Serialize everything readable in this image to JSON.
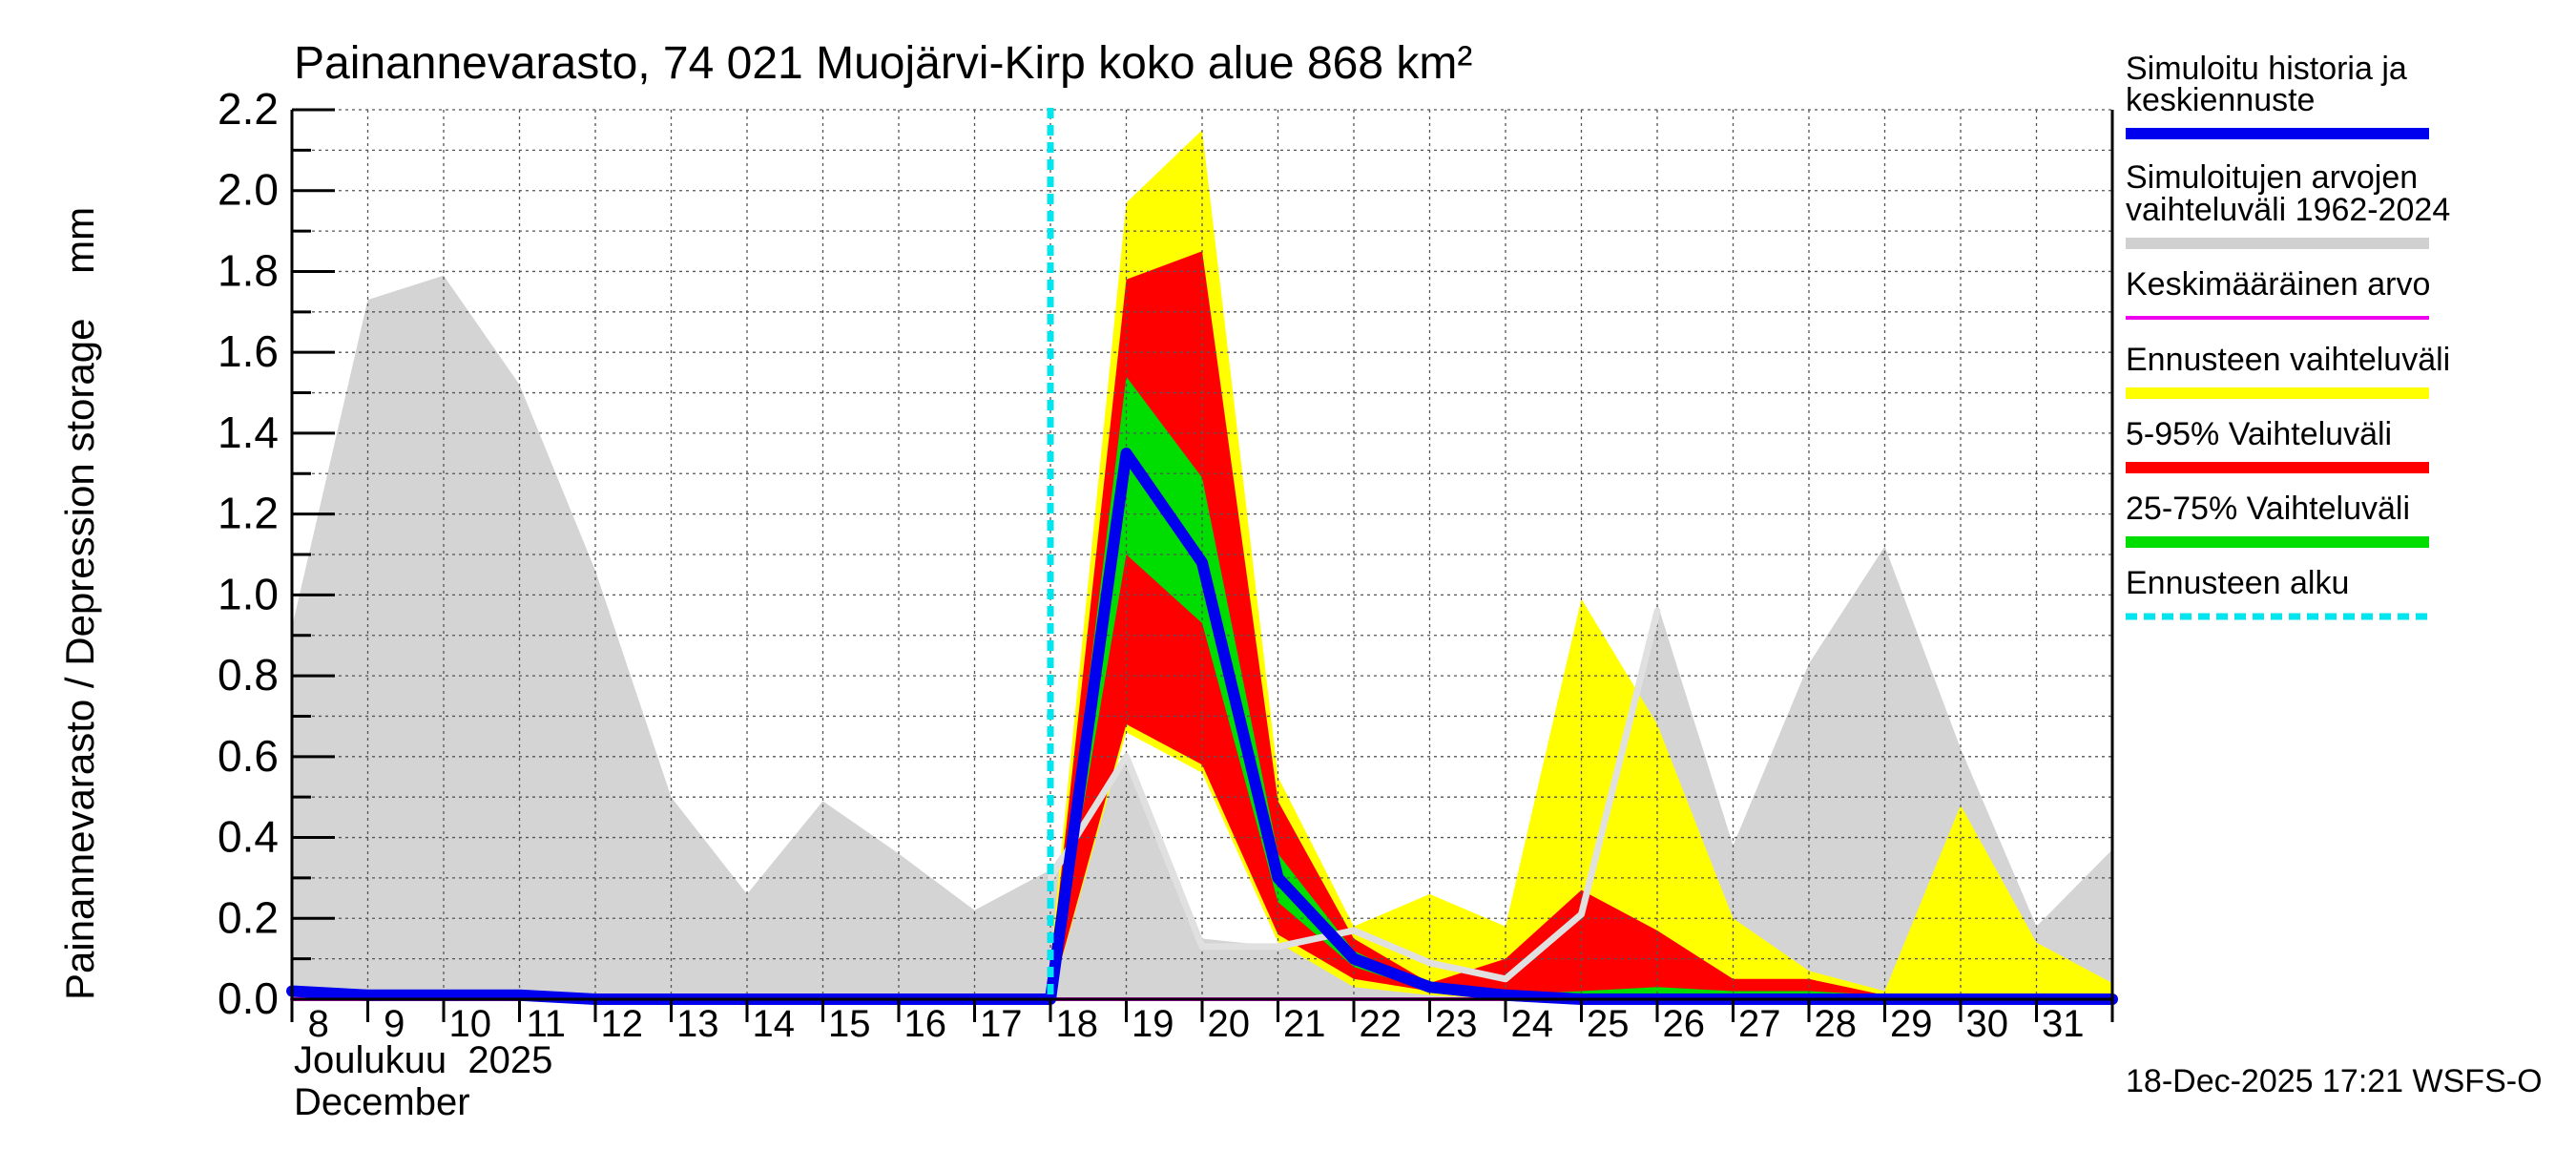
{
  "chart_data": {
    "type": "area",
    "title": "Painannevarasto, 74 021 Muojärvi-Kirp koko alue 868 km²",
    "ylabel": "Painannevarasto / Depression storage    mm",
    "ylim": [
      0.0,
      2.2
    ],
    "yticks": [
      "0.0",
      "0.2",
      "0.4",
      "0.6",
      "0.8",
      "1.0",
      "1.2",
      "1.4",
      "1.6",
      "1.8",
      "2.0",
      "2.2"
    ],
    "xlim": [
      8,
      32
    ],
    "x_tick_labels": [
      "8",
      "9",
      "10",
      "11",
      "12",
      "13",
      "14",
      "15",
      "16",
      "17",
      "18",
      "19",
      "20",
      "21",
      "22",
      "23",
      "24",
      "25",
      "26",
      "27",
      "28",
      "29",
      "30",
      "31"
    ],
    "month_label_fi": "Joulukuu  2025",
    "month_label_en": "December",
    "footer": "18-Dec-2025 17:21 WSFS-O",
    "forecast_start": 18,
    "grid": true,
    "legend": [
      {
        "key": "history",
        "lines": [
          "Simuloitu historia ja",
          "keskiennuste"
        ],
        "color": "#0000ee",
        "style": "solid"
      },
      {
        "key": "range",
        "lines": [
          "Simuloitujen arvojen",
          "vaihteluväli 1962-2024"
        ],
        "color": "#d0d0d0",
        "style": "solid"
      },
      {
        "key": "mean",
        "lines": [
          "Keskimääräinen arvo"
        ],
        "color": "#ee00ee",
        "style": "solid"
      },
      {
        "key": "ens_range",
        "lines": [
          "Ennusteen vaihteluväli"
        ],
        "color": "#ffff00",
        "style": "solid"
      },
      {
        "key": "p5_95",
        "lines": [
          "5-95% Vaihteluväli"
        ],
        "color": "#ff0000",
        "style": "solid"
      },
      {
        "key": "p25_75",
        "lines": [
          "25-75% Vaihteluväli"
        ],
        "color": "#00dd00",
        "style": "solid"
      },
      {
        "key": "start",
        "lines": [
          "Ennusteen alku"
        ],
        "color": "#00e5ee",
        "style": "dashed"
      }
    ],
    "series": {
      "hist_range": {
        "color": "#d4d4d4",
        "x": [
          8,
          9,
          10,
          11,
          12,
          13,
          14,
          15,
          16,
          17,
          18,
          19,
          20,
          21,
          22,
          23,
          24,
          25,
          26,
          27,
          28,
          29,
          30,
          31,
          32
        ],
        "low": [
          0,
          0,
          0,
          0,
          0,
          0,
          0,
          0,
          0,
          0,
          0,
          0,
          0,
          0,
          0,
          0,
          0,
          0,
          0,
          0,
          0,
          0,
          0,
          0,
          0
        ],
        "high": [
          0.92,
          1.73,
          1.79,
          1.52,
          1.06,
          0.5,
          0.26,
          0.49,
          0.36,
          0.22,
          0.32,
          0.6,
          0.15,
          0.13,
          0.18,
          0.1,
          0.05,
          0.21,
          0.98,
          0.38,
          0.83,
          1.12,
          0.62,
          0.18,
          0.37
        ]
      },
      "ens_range": {
        "color": "#ffff00",
        "x": [
          18,
          19,
          20,
          21,
          22,
          23,
          24,
          25,
          26,
          27,
          28,
          29,
          30,
          31,
          32
        ],
        "low": [
          0,
          0.66,
          0.56,
          0.14,
          0.03,
          0.01,
          0.0,
          0.0,
          0.0,
          0.0,
          0.0,
          0.0,
          0.0,
          0.0,
          0.0
        ],
        "high": [
          0.1,
          1.97,
          2.15,
          0.55,
          0.18,
          0.26,
          0.18,
          0.99,
          0.68,
          0.2,
          0.07,
          0.02,
          0.48,
          0.14,
          0.04
        ]
      },
      "p5_95": {
        "color": "#ff0000",
        "x": [
          18,
          19,
          20,
          21,
          22,
          23,
          24,
          25,
          26,
          27,
          28,
          29,
          30,
          31,
          32
        ],
        "low": [
          0,
          0.68,
          0.58,
          0.16,
          0.05,
          0.02,
          0.0,
          0.0,
          0.0,
          0.0,
          0.0,
          0.0,
          0.0,
          0.0,
          0.0
        ],
        "high": [
          0.07,
          1.78,
          1.85,
          0.49,
          0.15,
          0.04,
          0.1,
          0.27,
          0.17,
          0.05,
          0.05,
          0.01,
          0.01,
          0.01,
          0.01
        ]
      },
      "p25_75": {
        "color": "#00dd00",
        "x": [
          18,
          19,
          20,
          21,
          22,
          23,
          24,
          25,
          26,
          27,
          28,
          29,
          30,
          31,
          32
        ],
        "low": [
          0,
          1.1,
          0.93,
          0.24,
          0.08,
          0.02,
          0.0,
          0.0,
          0.01,
          0.01,
          0.01,
          0.0,
          0.0,
          0.0,
          0.0
        ],
        "high": [
          0.02,
          1.54,
          1.29,
          0.36,
          0.12,
          0.03,
          0.01,
          0.02,
          0.03,
          0.02,
          0.02,
          0.01,
          0.01,
          0.01,
          0.01
        ]
      },
      "median_white": {
        "color": "#e0e0e0",
        "x": [
          18,
          19,
          20,
          21,
          22,
          23,
          24,
          25,
          26
        ],
        "y": [
          0.3,
          0.6,
          0.13,
          0.13,
          0.17,
          0.09,
          0.05,
          0.21,
          0.96
        ]
      },
      "mean": {
        "color": "#ee00ee",
        "x": [
          8,
          32
        ],
        "y": [
          0.0,
          0.0
        ]
      },
      "forecast_mean": {
        "color": "#0000ee",
        "x": [
          8,
          9,
          10,
          11,
          12,
          13,
          14,
          15,
          16,
          17,
          18,
          19,
          20,
          21,
          22,
          23,
          24,
          25,
          26,
          27,
          28,
          29,
          30,
          31,
          32
        ],
        "y": [
          0.02,
          0.01,
          0.01,
          0.01,
          0.0,
          0.0,
          0.0,
          0.0,
          0.0,
          0.0,
          0.0,
          1.35,
          1.08,
          0.3,
          0.1,
          0.03,
          0.01,
          0.0,
          0.0,
          0.0,
          0.0,
          0.0,
          0.0,
          0.0,
          0.0
        ]
      }
    }
  }
}
